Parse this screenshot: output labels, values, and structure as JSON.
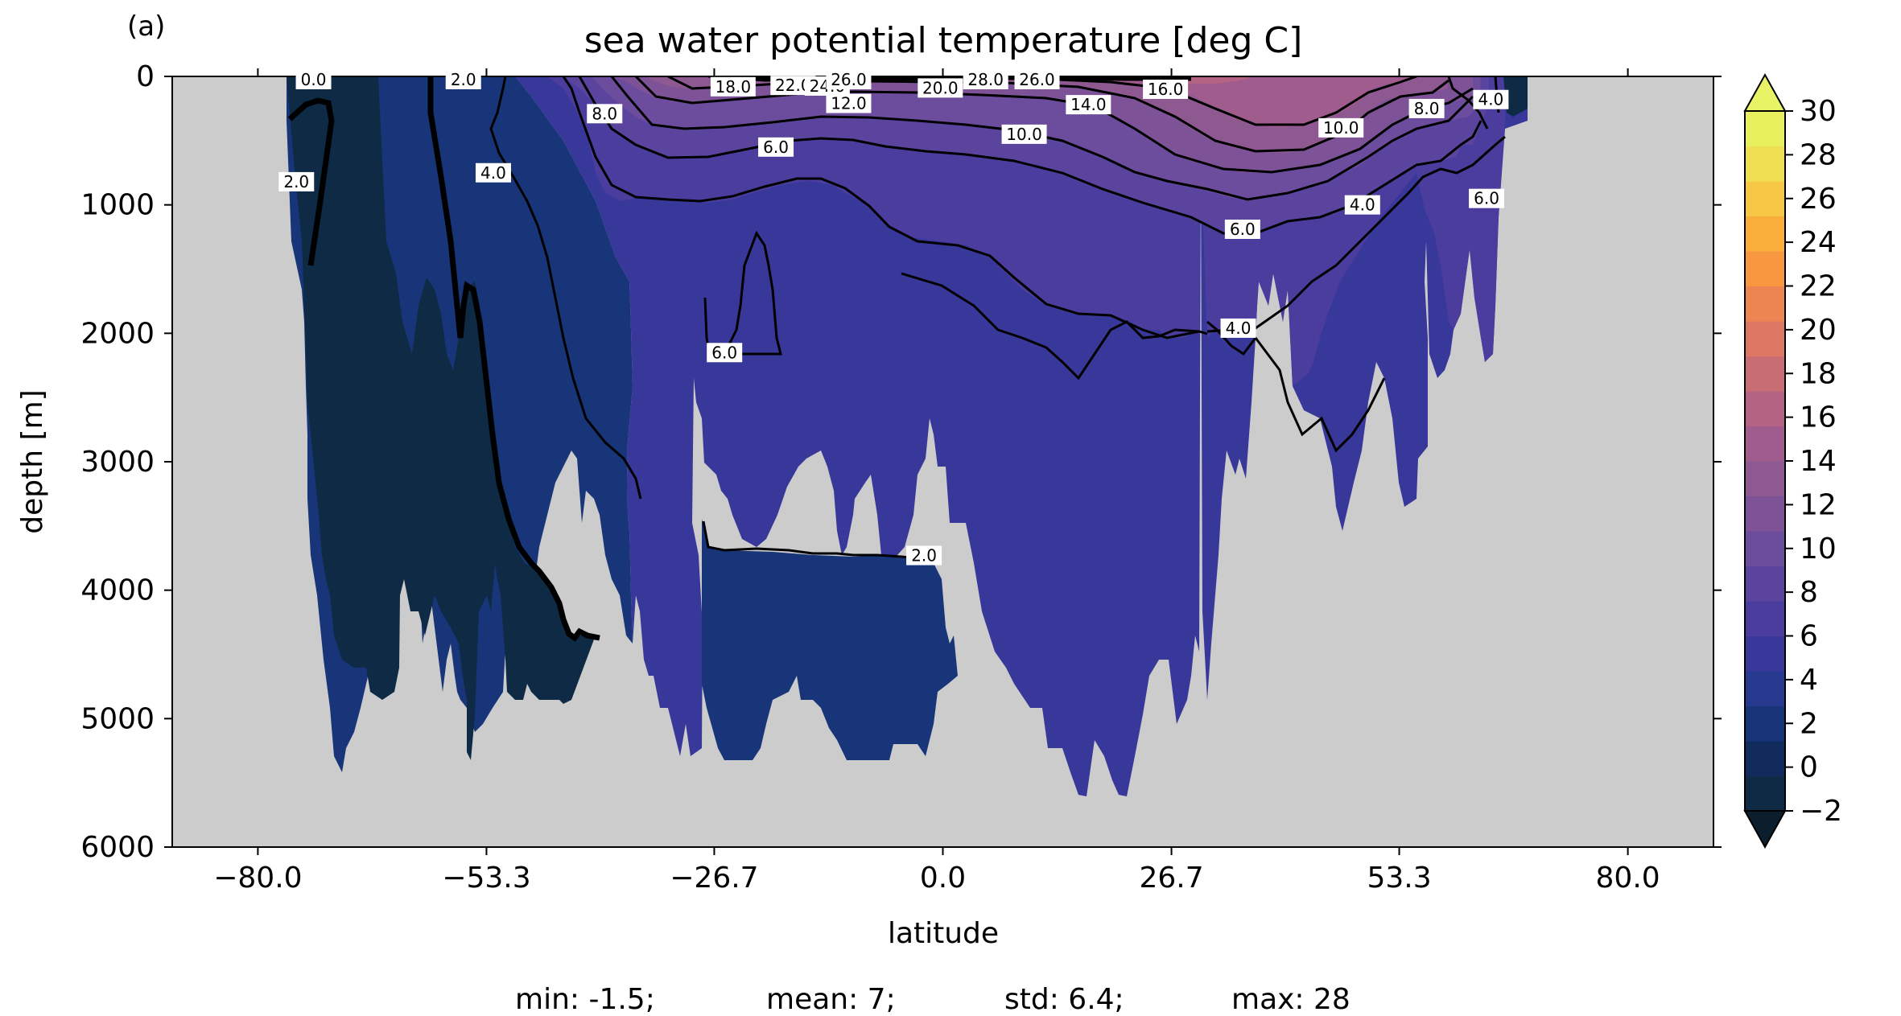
{
  "panel_label": "(a)",
  "stats": {
    "min": "min: -1.5;",
    "mean": "mean: 7;",
    "std": "std: 6.4;",
    "max": "max: 28"
  },
  "chart_data": {
    "type": "heatmap",
    "title": "sea water potential temperature [deg C]",
    "xlabel": "latitude",
    "ylabel": "depth [m]",
    "xlim": [
      -90,
      90
    ],
    "ylim": [
      6000,
      0
    ],
    "xticks": [
      -80.0,
      -53.3,
      -26.7,
      0.0,
      26.7,
      53.3,
      80.0
    ],
    "xtick_labels": [
      "−80.0",
      "−53.3",
      "−26.7",
      "0.0",
      "26.7",
      "53.3",
      "80.0"
    ],
    "yticks": [
      0,
      1000,
      2000,
      3000,
      4000,
      5000,
      6000
    ],
    "ytick_labels": [
      "0",
      "1000",
      "2000",
      "3000",
      "4000",
      "5000",
      "6000"
    ],
    "land_color": "#cccccc",
    "colorbar": {
      "levels": [
        -2,
        0,
        2,
        4,
        6,
        8,
        10,
        12,
        14,
        16,
        18,
        20,
        22,
        24,
        26,
        28,
        30
      ],
      "tick_labels": [
        "−2",
        "0",
        "2",
        "4",
        "6",
        "8",
        "10",
        "12",
        "14",
        "16",
        "18",
        "20",
        "22",
        "24",
        "26",
        "28",
        "30"
      ],
      "extend": "both",
      "colors": [
        "#0e2a44",
        "#112c5c",
        "#173578",
        "#283a8f",
        "#38379a",
        "#4a3d9e",
        "#5b449e",
        "#6c4c9c",
        "#7d5296",
        "#8e5891",
        "#a05c8c",
        "#b46382",
        "#c86d74",
        "#dc7764",
        "#ec8552",
        "#f7973f",
        "#f9ad3a",
        "#f6c744",
        "#efdf53",
        "#e8f05e"
      ],
      "under_color": "#0a1e2e",
      "over_color": "#e9f366"
    },
    "contour_labels": [
      {
        "text": "0.0",
        "lat": -73.5,
        "depth": 0
      },
      {
        "text": "2.0",
        "lat": -56,
        "depth": 0
      },
      {
        "text": "2.0",
        "lat": -75.5,
        "depth": 820
      },
      {
        "text": "4.0",
        "lat": -52.5,
        "depth": 750
      },
      {
        "text": "8.0",
        "lat": -39.5,
        "depth": 290
      },
      {
        "text": "18.0",
        "lat": -24.5,
        "depth": 80
      },
      {
        "text": "22.0",
        "lat": -17.5,
        "depth": 70
      },
      {
        "text": "24.0",
        "lat": -13.5,
        "depth": 75
      },
      {
        "text": "26.0",
        "lat": -11.0,
        "depth": 20
      },
      {
        "text": "12.0",
        "lat": -11.0,
        "depth": 210
      },
      {
        "text": "6.0",
        "lat": -19.5,
        "depth": 550
      },
      {
        "text": "20.0",
        "lat": -0.3,
        "depth": 90
      },
      {
        "text": "28.0",
        "lat": 5.0,
        "depth": 10
      },
      {
        "text": "26.0",
        "lat": 11.0,
        "depth": 10
      },
      {
        "text": "14.0",
        "lat": 17.0,
        "depth": 220
      },
      {
        "text": "10.0",
        "lat": 9.5,
        "depth": 450
      },
      {
        "text": "16.0",
        "lat": 26.0,
        "depth": 100
      },
      {
        "text": "10.0",
        "lat": 46.5,
        "depth": 400
      },
      {
        "text": "8.0",
        "lat": 56.5,
        "depth": 250
      },
      {
        "text": "4.0",
        "lat": 64.0,
        "depth": 180
      },
      {
        "text": "6.0",
        "lat": 63.5,
        "depth": 950
      },
      {
        "text": "4.0",
        "lat": 49.0,
        "depth": 1000
      },
      {
        "text": "6.0",
        "lat": 35.0,
        "depth": 1190
      },
      {
        "text": "4.0",
        "lat": 34.5,
        "depth": 1960
      },
      {
        "text": "6.0",
        "lat": -25.5,
        "depth": 2150
      },
      {
        "text": "2.0",
        "lat": -2.2,
        "depth": 3730
      }
    ]
  }
}
